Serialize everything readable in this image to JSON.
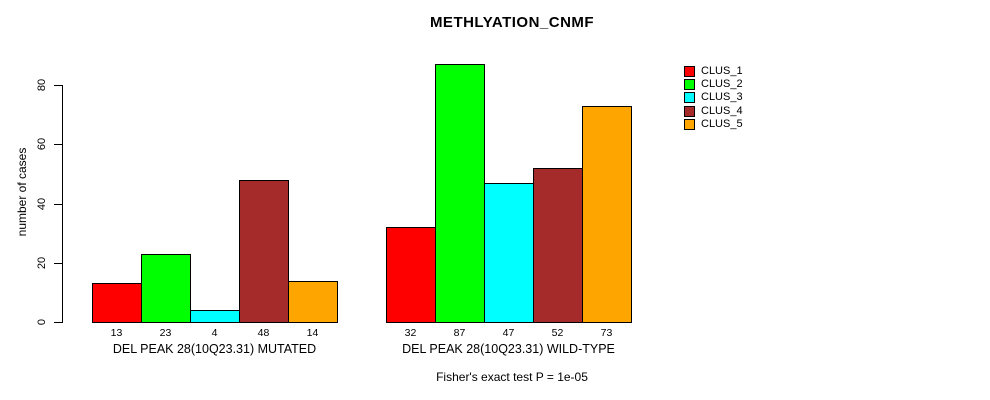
{
  "chart_data": {
    "type": "bar",
    "title": "METHLYATION_CNMF",
    "ylabel": "number of cases",
    "xlabel": "",
    "ylim": [
      0,
      80
    ],
    "yticks": [
      0,
      20,
      40,
      60,
      80
    ],
    "grid": false,
    "legend_position": "right",
    "categories": [
      "DEL PEAK 28(10Q23.31) MUTATED",
      "DEL PEAK 28(10Q23.31) WILD-TYPE"
    ],
    "series": [
      {
        "name": "CLUS_1",
        "color": "#FF0000",
        "values": [
          13,
          32
        ]
      },
      {
        "name": "CLUS_2",
        "color": "#00FF00",
        "values": [
          23,
          87
        ]
      },
      {
        "name": "CLUS_3",
        "color": "#00FFFF",
        "values": [
          4,
          47
        ]
      },
      {
        "name": "CLUS_4",
        "color": "#A52A2A",
        "values": [
          48,
          52
        ]
      },
      {
        "name": "CLUS_5",
        "color": "#FFA500",
        "values": [
          14,
          73
        ]
      }
    ],
    "bar_value_labels": [
      [
        13,
        23,
        4,
        48,
        14
      ],
      [
        32,
        87,
        47,
        52,
        73
      ]
    ],
    "note": "Fisher's exact test P = 1e-05",
    "colors": {
      "background": "#FFFFFF",
      "text": "#000000",
      "axis": "#000000"
    }
  }
}
